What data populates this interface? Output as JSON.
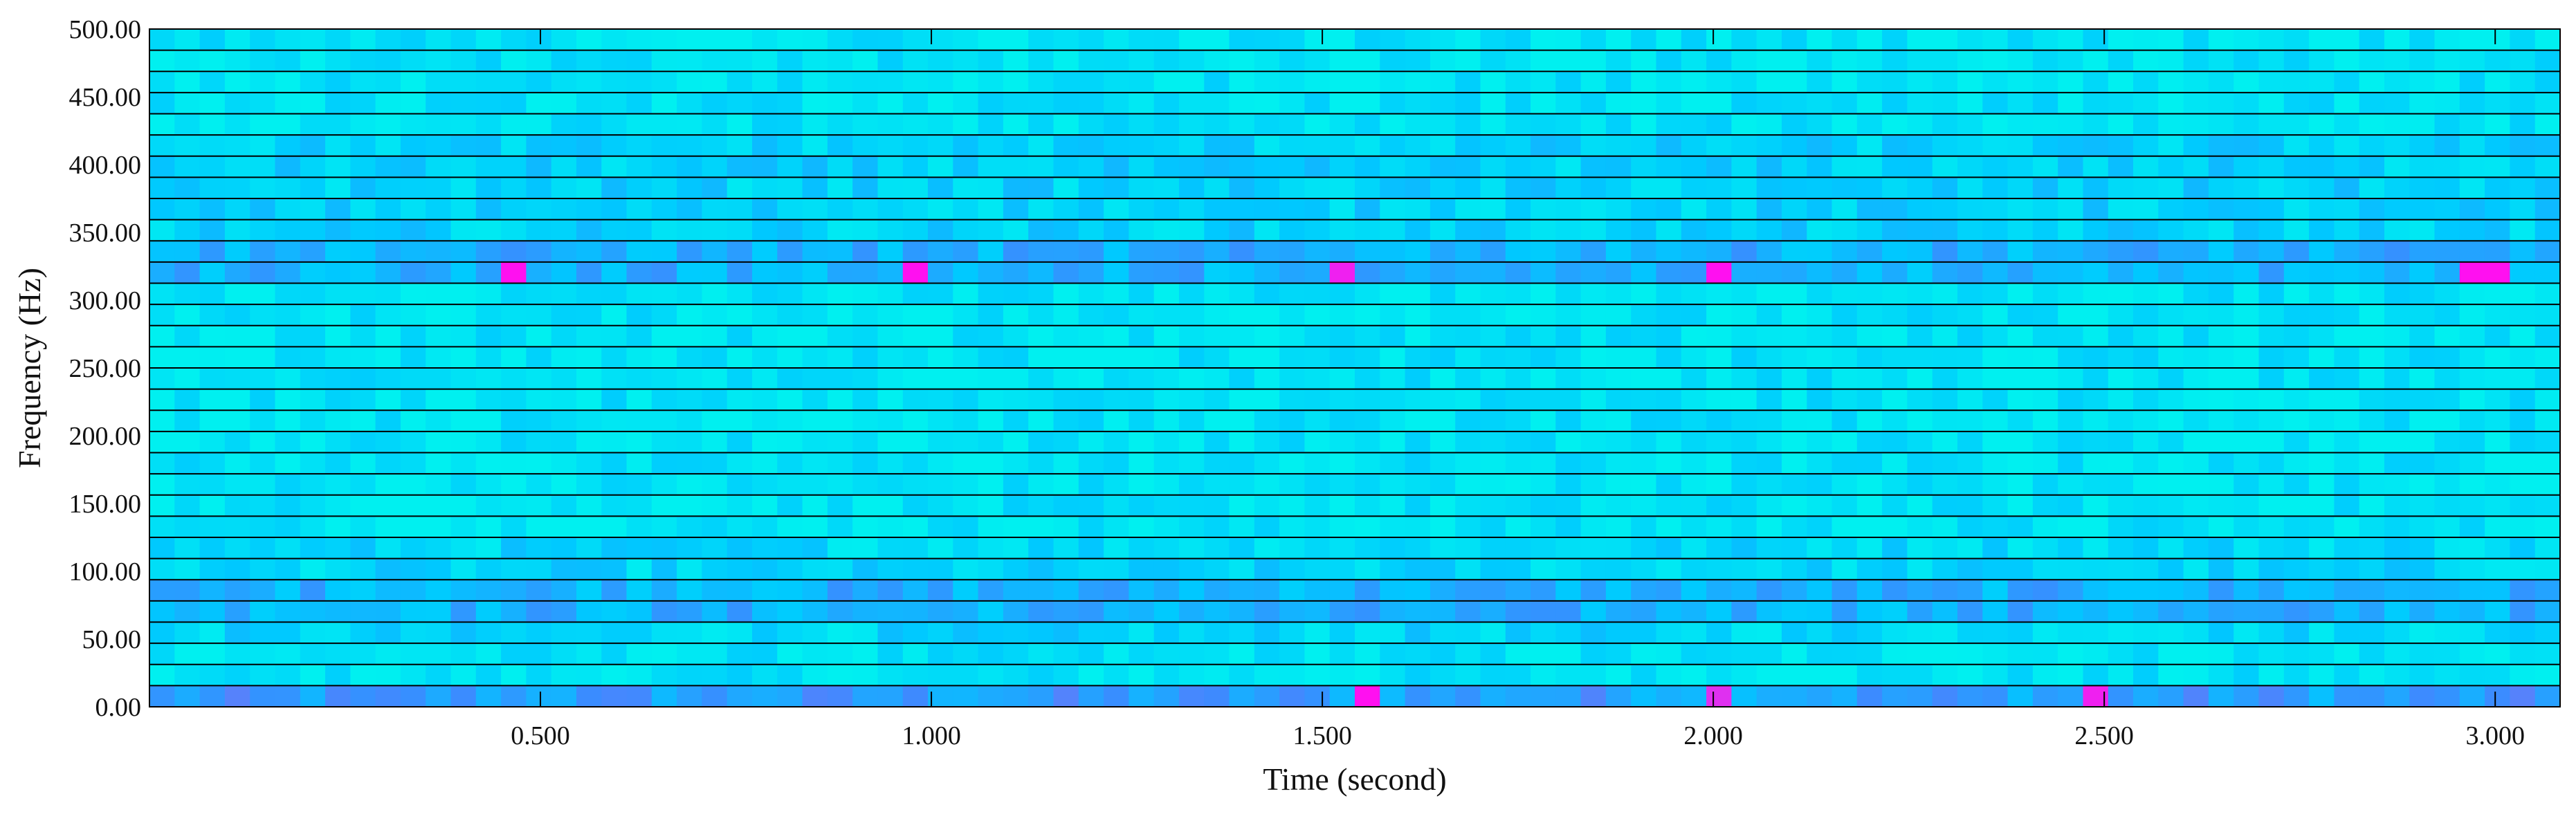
{
  "chart_data": {
    "type": "heatmap",
    "title": "",
    "xlabel": "Time (second)",
    "ylabel": "Frequency (Hz)",
    "xlim": [
      0,
      3.083
    ],
    "ylim": [
      0,
      500
    ],
    "x_ticks": [
      0.5,
      1.0,
      1.5,
      2.0,
      2.5,
      3.0
    ],
    "x_tick_labels": [
      "0.500",
      "1.000",
      "1.500",
      "2.000",
      "2.500",
      "3.000"
    ],
    "y_ticks": [
      0,
      50,
      100,
      150,
      200,
      250,
      300,
      350,
      400,
      450,
      500
    ],
    "y_tick_labels": [
      "0.00",
      "50.00",
      "100.00",
      "150.00",
      "200.00",
      "250.00",
      "300.00",
      "350.00",
      "400.00",
      "450.00",
      "500.00"
    ],
    "frequency_bands_hz": 31.25,
    "time_frame_s": 0.032,
    "n_time_frames": 96,
    "n_frequency_bins": 32,
    "colormap": [
      "#00f0f0",
      "#00c8ff",
      "#3a8cff",
      "#b060f0",
      "#ff10f0"
    ],
    "value_scale": [
      0,
      1
    ],
    "grid": "horizontal lines at each frequency band",
    "strong_bands_hz": [
      0,
      75,
      325
    ],
    "peak_cells": [
      {
        "time": 0.465,
        "frequency": 325,
        "value": 1.0
      },
      {
        "time": 0.975,
        "frequency": 325,
        "value": 1.0
      },
      {
        "time": 1.515,
        "frequency": 325,
        "value": 0.95
      },
      {
        "time": 2.005,
        "frequency": 325,
        "value": 1.0
      },
      {
        "time": 2.985,
        "frequency": 325,
        "value": 1.0
      },
      {
        "time": 1.555,
        "frequency": 0,
        "value": 1.0
      },
      {
        "time": 2.495,
        "frequency": 0,
        "value": 0.95
      },
      {
        "time": 2.015,
        "frequency": 0,
        "value": 0.9
      }
    ]
  }
}
